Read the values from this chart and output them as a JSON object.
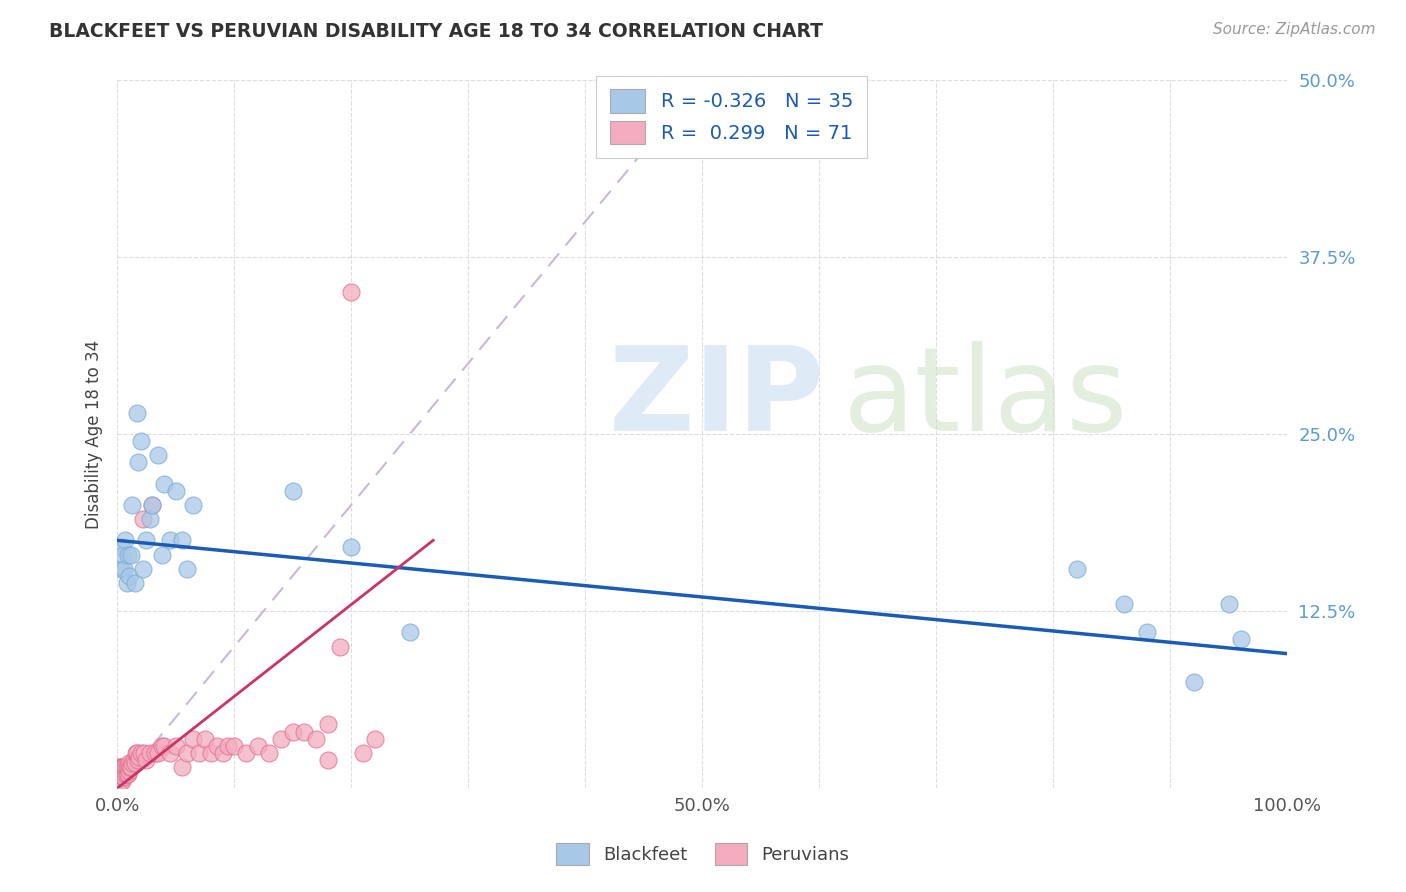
{
  "title": "BLACKFEET VS PERUVIAN DISABILITY AGE 18 TO 34 CORRELATION CHART",
  "source": "Source: ZipAtlas.com",
  "ylabel": "Disability Age 18 to 34",
  "xlim": [
    0,
    1.0
  ],
  "ylim": [
    0,
    0.5
  ],
  "blackfeet_color": "#A8C8E8",
  "blackfeet_edge_color": "#7AAAD0",
  "peruvian_color": "#F4ACBE",
  "peruvian_edge_color": "#E07090",
  "blackfeet_line_color": "#1A5BB5",
  "peruvian_line_color": "#CC3366",
  "diagonal_color": "#C8B8D8",
  "r_blackfeet": -0.326,
  "n_blackfeet": 35,
  "r_peruvian": 0.299,
  "n_peruvian": 71,
  "background_color": "#ffffff",
  "grid_color": "#DDDDDD",
  "title_color": "#333333",
  "source_color": "#999999",
  "tick_color_y": "#5B9BD5",
  "tick_color_x": "#555555",
  "legend_text_color": "#1A5BB5",
  "bf_line_x0": 0.0,
  "bf_line_y0": 0.175,
  "bf_line_x1": 1.0,
  "bf_line_y1": 0.095,
  "pv_line_x0": 0.0,
  "pv_line_y0": 0.0,
  "pv_line_x1": 0.27,
  "pv_line_y1": 0.175,
  "blackfeet_x": [
    0.003,
    0.004,
    0.005,
    0.006,
    0.007,
    0.008,
    0.009,
    0.01,
    0.012,
    0.013,
    0.015,
    0.017,
    0.018,
    0.02,
    0.022,
    0.025,
    0.028,
    0.03,
    0.035,
    0.038,
    0.04,
    0.045,
    0.05,
    0.055,
    0.06,
    0.065,
    0.15,
    0.2,
    0.25,
    0.82,
    0.86,
    0.88,
    0.92,
    0.95,
    0.96
  ],
  "blackfeet_y": [
    0.155,
    0.17,
    0.165,
    0.155,
    0.175,
    0.145,
    0.165,
    0.15,
    0.165,
    0.2,
    0.145,
    0.265,
    0.23,
    0.245,
    0.155,
    0.175,
    0.19,
    0.2,
    0.235,
    0.165,
    0.215,
    0.175,
    0.21,
    0.175,
    0.155,
    0.2,
    0.21,
    0.17,
    0.11,
    0.155,
    0.13,
    0.11,
    0.075,
    0.13,
    0.105
  ],
  "peruvian_x": [
    0.001,
    0.001,
    0.001,
    0.001,
    0.002,
    0.002,
    0.002,
    0.002,
    0.003,
    0.003,
    0.003,
    0.004,
    0.004,
    0.004,
    0.005,
    0.005,
    0.005,
    0.006,
    0.006,
    0.007,
    0.007,
    0.008,
    0.008,
    0.009,
    0.009,
    0.01,
    0.01,
    0.011,
    0.012,
    0.013,
    0.014,
    0.015,
    0.016,
    0.017,
    0.018,
    0.019,
    0.02,
    0.022,
    0.023,
    0.025,
    0.028,
    0.03,
    0.032,
    0.035,
    0.038,
    0.04,
    0.045,
    0.05,
    0.055,
    0.06,
    0.065,
    0.07,
    0.075,
    0.08,
    0.085,
    0.09,
    0.095,
    0.1,
    0.11,
    0.12,
    0.13,
    0.14,
    0.15,
    0.16,
    0.17,
    0.18,
    0.19,
    0.2,
    0.21,
    0.22,
    0.18
  ],
  "peruvian_y": [
    0.005,
    0.01,
    0.015,
    0.005,
    0.01,
    0.015,
    0.005,
    0.01,
    0.008,
    0.012,
    0.005,
    0.01,
    0.015,
    0.005,
    0.01,
    0.015,
    0.008,
    0.012,
    0.008,
    0.01,
    0.015,
    0.01,
    0.015,
    0.01,
    0.015,
    0.012,
    0.018,
    0.015,
    0.015,
    0.018,
    0.02,
    0.018,
    0.025,
    0.025,
    0.02,
    0.022,
    0.025,
    0.19,
    0.025,
    0.02,
    0.025,
    0.2,
    0.025,
    0.025,
    0.03,
    0.03,
    0.025,
    0.03,
    0.015,
    0.025,
    0.035,
    0.025,
    0.035,
    0.025,
    0.03,
    0.025,
    0.03,
    0.03,
    0.025,
    0.03,
    0.025,
    0.035,
    0.04,
    0.04,
    0.035,
    0.045,
    0.1,
    0.35,
    0.025,
    0.035,
    0.02
  ]
}
